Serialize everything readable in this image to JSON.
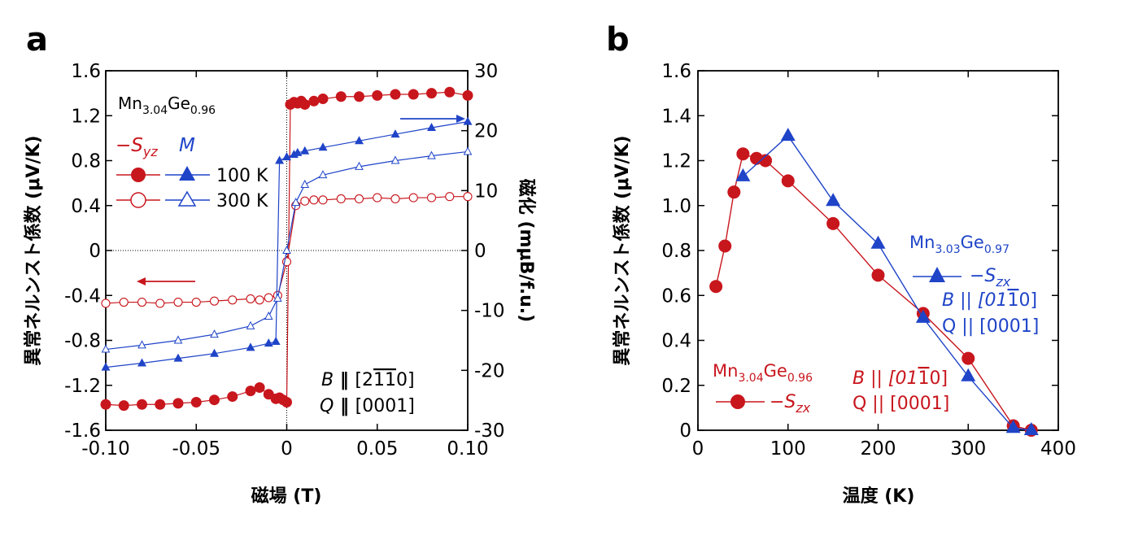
{
  "colors": {
    "red": "#c8161d",
    "blue": "#1f44c8",
    "axis": "#000000"
  },
  "panel_a": {
    "label": "a",
    "compound": [
      "Mn",
      "3.04",
      "Ge",
      "0.96"
    ],
    "legend": {
      "s_label": "−S",
      "s_sub": "yz",
      "m_label": "M",
      "row1": "100 K",
      "row2": "300 K"
    },
    "field_lines": [
      "B",
      "[2",
      "1",
      "1",
      "0]"
    ],
    "q_lines": [
      "Q",
      "[0001]"
    ],
    "xlabel": "磁場 (T)",
    "ylabel_left": "異常ネルンスト係数 (μV/K)",
    "ylabel_right": "磁化 (mμB/f.u.)"
  },
  "panel_b": {
    "label": "b",
    "blue_compound": [
      "Mn",
      "3.03",
      "Ge",
      "0.97"
    ],
    "blue_legend": "−S",
    "blue_legend_sub": "zx",
    "blue_B": "B || [01",
    "blue_B_bar": "1",
    "blue_B_end": "0]",
    "blue_Q": "Q || [0001]",
    "red_compound": [
      "Mn",
      "3.04",
      "Ge",
      "0.96"
    ],
    "red_legend": "−S",
    "red_legend_sub": "zx",
    "red_B": "B || [01",
    "red_B_bar": "1",
    "red_B_end": "0]",
    "red_Q": "Q || [0001]",
    "xlabel": "温度 (K)",
    "ylabel": "異常ネルンスト係数 (μV/K)"
  },
  "chart_data": [
    {
      "type": "line",
      "panel": "a",
      "xlim": [
        -0.1,
        0.1
      ],
      "ylim_left": [
        -1.6,
        1.6
      ],
      "ylim_right": [
        -30,
        30
      ],
      "x_ticks": [
        "-0.10",
        "-0.05",
        "0",
        "0.05",
        "0.10"
      ],
      "y_ticks_left": [
        "1.6",
        "1.2",
        "0.8",
        "0.4",
        "0",
        "-0.4",
        "-0.8",
        "-1.2",
        "-1.6"
      ],
      "y_ticks_right": [
        "30",
        "20",
        "10",
        "0",
        "-10",
        "-20",
        "-30"
      ],
      "series": [
        {
          "name": "−Syz 100 K",
          "axis": "left",
          "marker": "filled-circle",
          "color": "red",
          "x": [
            -0.1,
            -0.09,
            -0.08,
            -0.07,
            -0.06,
            -0.05,
            -0.04,
            -0.03,
            -0.02,
            -0.015,
            -0.01,
            -0.006,
            -0.004,
            -0.002,
            0,
            0.002,
            0.004,
            0.006,
            0.008,
            0.01,
            0.015,
            0.02,
            0.03,
            0.04,
            0.05,
            0.06,
            0.07,
            0.08,
            0.09,
            0.1
          ],
          "y": [
            -1.37,
            -1.38,
            -1.37,
            -1.37,
            -1.36,
            -1.35,
            -1.33,
            -1.3,
            -1.25,
            -1.22,
            -1.28,
            -1.32,
            -1.31,
            -1.33,
            -1.35,
            1.3,
            1.32,
            1.31,
            1.33,
            1.3,
            1.33,
            1.35,
            1.37,
            1.37,
            1.38,
            1.39,
            1.39,
            1.4,
            1.41,
            1.38
          ]
        },
        {
          "name": "−Syz 300 K",
          "axis": "left",
          "marker": "open-circle",
          "color": "red",
          "x": [
            -0.1,
            -0.09,
            -0.08,
            -0.07,
            -0.06,
            -0.05,
            -0.04,
            -0.03,
            -0.02,
            -0.015,
            -0.01,
            -0.005,
            0,
            0.005,
            0.01,
            0.015,
            0.02,
            0.03,
            0.04,
            0.05,
            0.06,
            0.07,
            0.08,
            0.09,
            0.1
          ],
          "y": [
            -0.47,
            -0.46,
            -0.46,
            -0.47,
            -0.46,
            -0.46,
            -0.45,
            -0.44,
            -0.43,
            -0.44,
            -0.42,
            -0.4,
            -0.1,
            0.4,
            0.44,
            0.45,
            0.45,
            0.46,
            0.46,
            0.47,
            0.46,
            0.47,
            0.47,
            0.48,
            0.48
          ]
        },
        {
          "name": "M 100 K",
          "axis": "right",
          "marker": "filled-triangle",
          "color": "blue",
          "x": [
            -0.1,
            -0.08,
            -0.06,
            -0.04,
            -0.02,
            -0.01,
            -0.006,
            -0.004,
            0,
            0.004,
            0.006,
            0.01,
            0.02,
            0.04,
            0.06,
            0.08,
            0.1
          ],
          "y": [
            -19.5,
            -18.8,
            -18.0,
            -17.2,
            -16.2,
            -15.5,
            -15.2,
            15.0,
            15.6,
            16.0,
            16.3,
            16.6,
            17.2,
            18.3,
            19.4,
            20.5,
            21.5
          ]
        },
        {
          "name": "M 300 K",
          "axis": "right",
          "marker": "open-triangle",
          "color": "blue",
          "x": [
            -0.1,
            -0.08,
            -0.06,
            -0.04,
            -0.02,
            -0.01,
            -0.005,
            0,
            0.005,
            0.01,
            0.02,
            0.04,
            0.06,
            0.08,
            0.1
          ],
          "y": [
            -16.5,
            -15.8,
            -15.0,
            -14.0,
            -12.6,
            -11.0,
            -8.0,
            0.0,
            8.0,
            11.0,
            12.6,
            14.0,
            15.0,
            15.8,
            16.5
          ]
        }
      ]
    },
    {
      "type": "line",
      "panel": "b",
      "xlim": [
        0,
        400
      ],
      "ylim": [
        0,
        1.6
      ],
      "x_ticks": [
        "0",
        "100",
        "200",
        "300",
        "400"
      ],
      "y_ticks": [
        "0",
        "0.2",
        "0.4",
        "0.6",
        "0.8",
        "1.0",
        "1.2",
        "1.4",
        "1.6"
      ],
      "series": [
        {
          "name": "Mn3.04Ge0.96 −Szx",
          "marker": "filled-circle",
          "color": "red",
          "x": [
            20,
            30,
            40,
            50,
            65,
            75,
            100,
            150,
            200,
            250,
            300,
            350,
            370
          ],
          "y": [
            0.64,
            0.82,
            1.06,
            1.23,
            1.21,
            1.2,
            1.11,
            0.92,
            0.69,
            0.52,
            0.32,
            0.02,
            0.0
          ]
        },
        {
          "name": "Mn3.03Ge0.97 −Szx",
          "marker": "filled-triangle",
          "color": "blue",
          "x": [
            50,
            100,
            150,
            200,
            250,
            300,
            350,
            370
          ],
          "y": [
            1.13,
            1.31,
            1.02,
            0.83,
            0.5,
            0.24,
            0.01,
            0.0
          ]
        }
      ]
    }
  ]
}
